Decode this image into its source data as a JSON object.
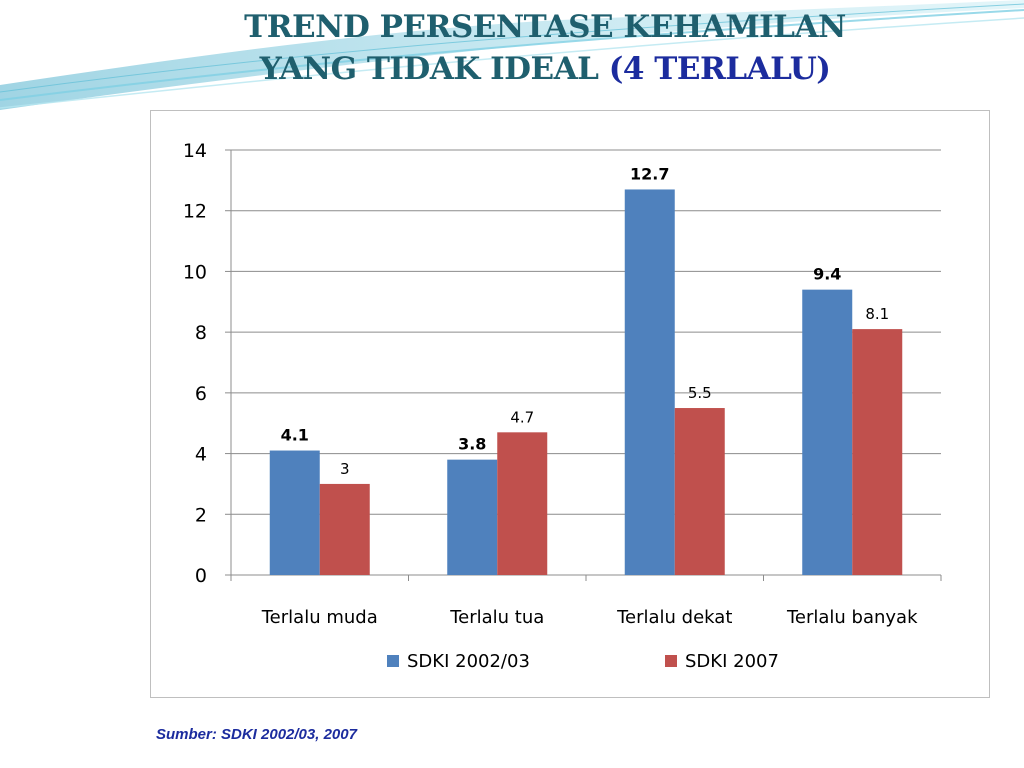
{
  "slide": {
    "title_line1": "TREND PERSENTASE KEHAMILAN",
    "title_line2_main": "YANG TIDAK IDEAL ",
    "title_line2_accent": "(4 TERLALU)",
    "source": "Sumber: SDKI 2002/03, 2007"
  },
  "chart_data": {
    "type": "bar",
    "categories": [
      "Terlalu muda",
      "Terlalu tua",
      "Terlalu dekat",
      "Terlalu banyak"
    ],
    "series": [
      {
        "name": "SDKI 2002/03",
        "values": [
          4.1,
          3.8,
          12.7,
          9.4
        ],
        "labels": [
          "4.1",
          "3.8",
          "12.7",
          "9.4"
        ],
        "color": "#4F81BD"
      },
      {
        "name": "SDKI 2007",
        "values": [
          3,
          4.7,
          5.5,
          8.1
        ],
        "labels": [
          "3",
          "4.7",
          "5.5",
          "8.1"
        ],
        "color": "#C0504D"
      }
    ],
    "ylim": [
      0,
      14
    ],
    "yticks": [
      0,
      2,
      4,
      6,
      8,
      10,
      12,
      14
    ],
    "grid": true,
    "legend": "bottom"
  }
}
